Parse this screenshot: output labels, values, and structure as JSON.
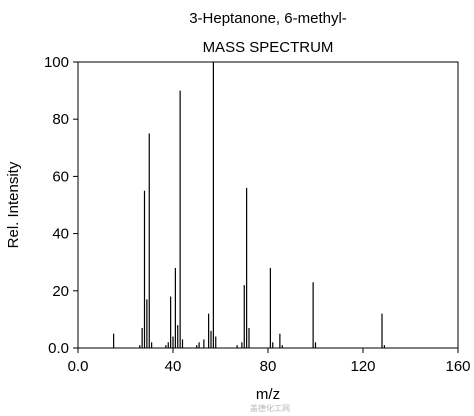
{
  "chart_data": {
    "type": "bar",
    "title": "3-Heptanone, 6-methyl-",
    "subtitle": "MASS SPECTRUM",
    "xlabel": "m/z",
    "ylabel": "Rel. Intensity",
    "xlim": [
      0,
      160
    ],
    "ylim": [
      0,
      100
    ],
    "xticks": [
      0,
      40,
      80,
      120,
      160
    ],
    "xtick_labels": [
      "0.0",
      "40",
      "80",
      "120",
      "160"
    ],
    "yticks": [
      0,
      20,
      40,
      60,
      80,
      100
    ],
    "ytick_labels": [
      "0.0",
      "20",
      "40",
      "60",
      "80",
      "100"
    ],
    "grid": false,
    "bar_color": "#000000",
    "peaks": [
      {
        "mz": 15,
        "intensity": 5
      },
      {
        "mz": 26,
        "intensity": 1
      },
      {
        "mz": 27,
        "intensity": 7
      },
      {
        "mz": 28,
        "intensity": 55
      },
      {
        "mz": 29,
        "intensity": 17
      },
      {
        "mz": 30,
        "intensity": 75
      },
      {
        "mz": 31,
        "intensity": 2
      },
      {
        "mz": 37,
        "intensity": 1
      },
      {
        "mz": 38,
        "intensity": 2
      },
      {
        "mz": 39,
        "intensity": 18
      },
      {
        "mz": 40,
        "intensity": 4
      },
      {
        "mz": 41,
        "intensity": 28
      },
      {
        "mz": 42,
        "intensity": 8
      },
      {
        "mz": 43,
        "intensity": 90
      },
      {
        "mz": 44,
        "intensity": 3
      },
      {
        "mz": 50,
        "intensity": 1
      },
      {
        "mz": 51,
        "intensity": 2
      },
      {
        "mz": 53,
        "intensity": 3
      },
      {
        "mz": 55,
        "intensity": 12
      },
      {
        "mz": 56,
        "intensity": 6
      },
      {
        "mz": 57,
        "intensity": 100
      },
      {
        "mz": 58,
        "intensity": 4
      },
      {
        "mz": 67,
        "intensity": 1
      },
      {
        "mz": 69,
        "intensity": 2
      },
      {
        "mz": 70,
        "intensity": 22
      },
      {
        "mz": 71,
        "intensity": 56
      },
      {
        "mz": 72,
        "intensity": 7
      },
      {
        "mz": 81,
        "intensity": 28
      },
      {
        "mz": 82,
        "intensity": 2
      },
      {
        "mz": 85,
        "intensity": 5
      },
      {
        "mz": 86,
        "intensity": 1
      },
      {
        "mz": 99,
        "intensity": 23
      },
      {
        "mz": 100,
        "intensity": 2
      },
      {
        "mz": 128,
        "intensity": 12
      },
      {
        "mz": 129,
        "intensity": 1
      }
    ]
  },
  "watermark": {
    "text": "盖德化工网"
  }
}
